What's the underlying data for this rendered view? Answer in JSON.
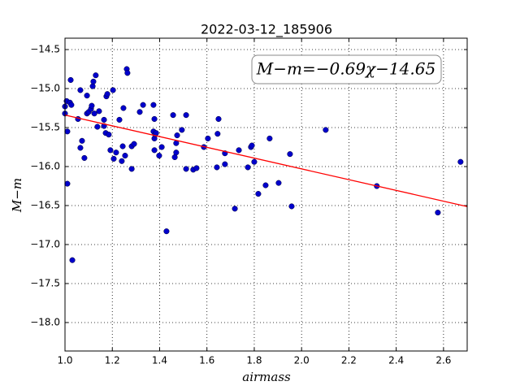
{
  "chart_data": {
    "type": "scatter",
    "title": "2022-03-12_185906",
    "x_label": "airmass",
    "y_label": "M−m",
    "annotation": "M−m=−0.69χ−14.65",
    "color": "#0000cc",
    "fit": {
      "slope": -0.69,
      "intercept": -14.65,
      "color": "#ff0000"
    },
    "x": [
      1.0,
      1.0,
      1.007,
      1.01,
      1.01,
      1.021,
      1.024,
      1.027,
      1.031,
      1.055,
      1.065,
      1.065,
      1.072,
      1.082,
      1.093,
      1.093,
      1.1,
      1.11,
      1.113,
      1.117,
      1.12,
      1.124,
      1.13,
      1.137,
      1.144,
      1.165,
      1.165,
      1.172,
      1.175,
      1.179,
      1.185,
      1.192,
      1.203,
      1.206,
      1.216,
      1.23,
      1.24,
      1.244,
      1.247,
      1.254,
      1.261,
      1.264,
      1.282,
      1.282,
      1.292,
      1.316,
      1.33,
      1.374,
      1.378,
      1.374,
      1.378,
      1.378,
      1.381,
      1.385,
      1.398,
      1.409,
      1.429,
      1.457,
      1.464,
      1.47,
      1.47,
      1.474,
      1.494,
      1.512,
      1.512,
      1.542,
      1.556,
      1.587,
      1.604,
      1.642,
      1.649,
      1.645,
      1.676,
      1.676,
      1.718,
      1.735,
      1.773,
      1.786,
      1.79,
      1.8,
      1.817,
      1.848,
      1.865,
      1.903,
      1.951,
      1.958,
      2.102,
      2.318,
      2.576,
      2.672
    ],
    "y": [
      -15.23,
      -15.32,
      -15.16,
      -15.55,
      -16.22,
      -15.18,
      -14.89,
      -15.21,
      -17.2,
      -15.39,
      -15.02,
      -15.76,
      -15.67,
      -15.89,
      -15.09,
      -15.32,
      -15.3,
      -15.26,
      -15.22,
      -14.97,
      -14.91,
      -15.32,
      -14.83,
      -15.49,
      -15.29,
      -15.4,
      -15.48,
      -15.57,
      -15.1,
      -15.07,
      -15.59,
      -15.79,
      -15.02,
      -15.9,
      -15.82,
      -15.4,
      -15.93,
      -15.74,
      -15.25,
      -15.86,
      -14.75,
      -14.8,
      -15.74,
      -16.03,
      -15.71,
      -15.3,
      -15.21,
      -15.21,
      -15.39,
      -15.55,
      -15.64,
      -15.79,
      -15.59,
      -15.57,
      -15.86,
      -15.75,
      -16.83,
      -15.34,
      -15.88,
      -15.7,
      -15.82,
      -15.6,
      -15.53,
      -15.34,
      -16.03,
      -16.04,
      -16.02,
      -15.75,
      -15.64,
      -16.01,
      -15.39,
      -15.58,
      -15.83,
      -15.97,
      -16.54,
      -15.79,
      -16.01,
      -15.75,
      -15.73,
      -15.94,
      -16.35,
      -16.24,
      -15.64,
      -16.21,
      -15.84,
      -16.51,
      -15.53,
      -16.25,
      -16.59,
      -15.94
    ],
    "xlim": [
      1.0,
      2.7
    ],
    "ylim": [
      -18.365,
      -14.354
    ],
    "y_inverted": true,
    "grid": true,
    "xticks": [
      {
        "value": 1.0,
        "label": "1.0"
      },
      1.2,
      1.4,
      1.6,
      1.8,
      {
        "value": 2.0,
        "label": "2.0"
      },
      2.2,
      2.4,
      2.6
    ],
    "yticks": [
      {
        "value": -14.5,
        "label": "−14.5"
      },
      {
        "value": -15.0,
        "label": "−15.0"
      },
      {
        "value": -15.5,
        "label": "−15.5"
      },
      {
        "value": -16.0,
        "label": "−16.0"
      },
      {
        "value": -16.5,
        "label": "−16.5"
      },
      {
        "value": -17.0,
        "label": "−17.0"
      },
      {
        "value": -17.5,
        "label": "−17.5"
      },
      {
        "value": -18.0,
        "label": "−18.0"
      }
    ]
  }
}
